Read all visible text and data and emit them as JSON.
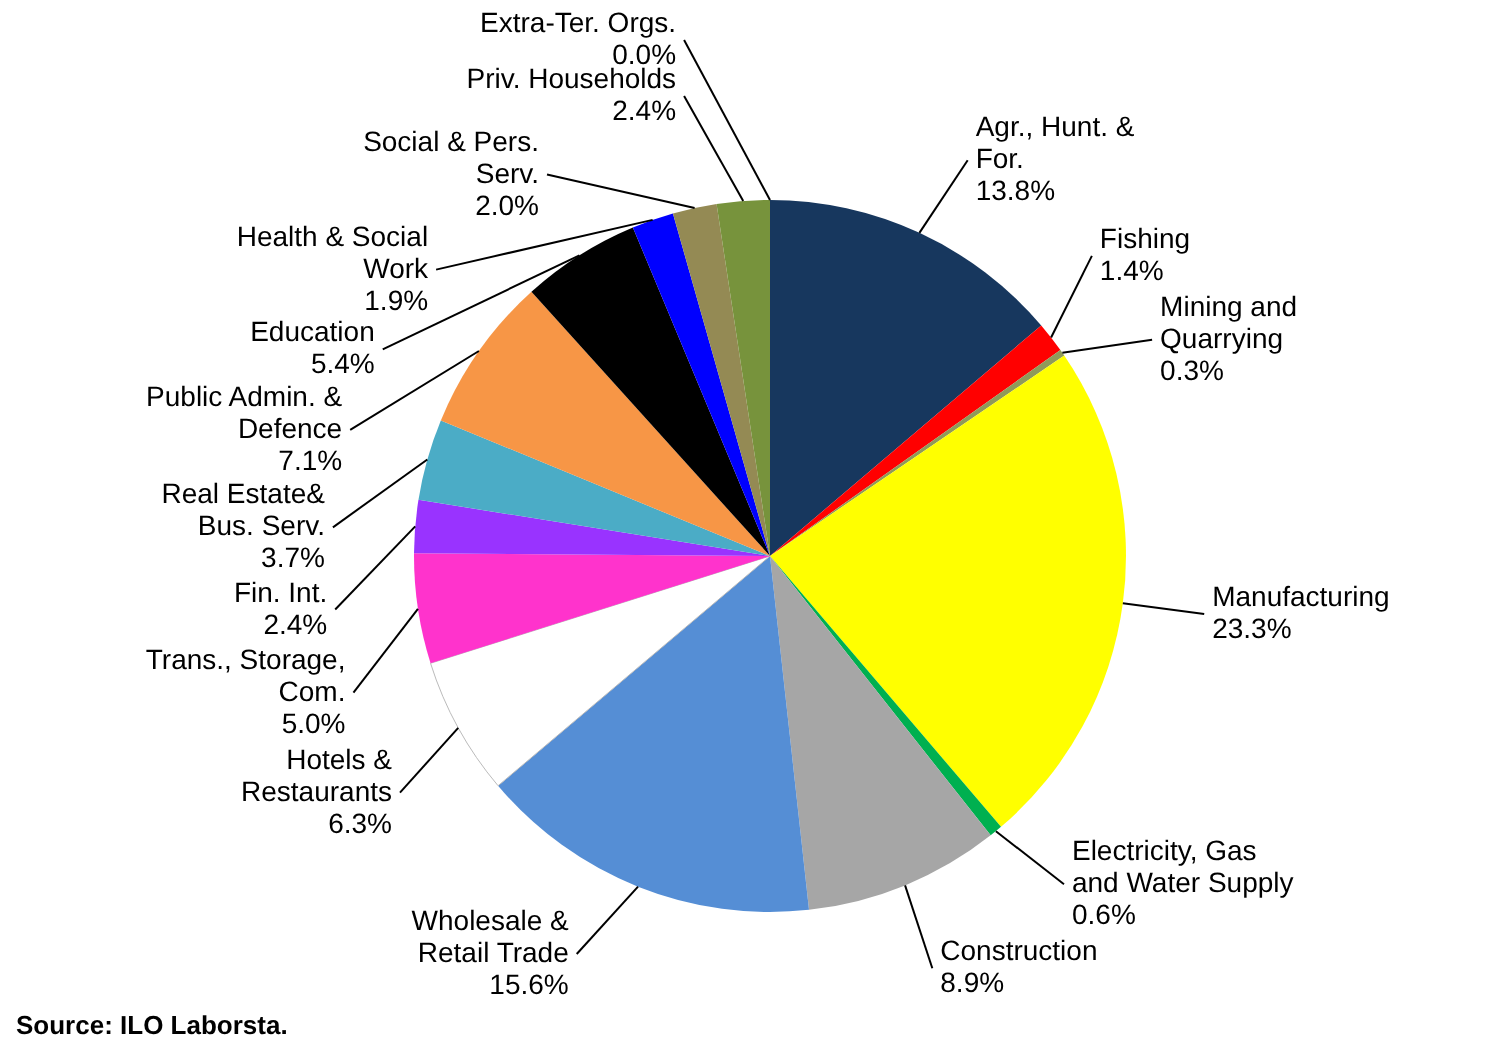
{
  "chart_data": {
    "type": "pie",
    "categories": [
      "Agr., Hunt. & For.",
      "Fishing",
      "Mining and Quarrying",
      "Manufacturing",
      "Electricity, Gas and Water Supply",
      "Construction",
      "Wholesale & Retail Trade",
      "Hotels & Restaurants",
      "Trans., Storage, Com.",
      "Fin. Int.",
      "Real Estate& Bus. Serv.",
      "Public Admin. & Defence",
      "Education",
      "Health & Social Work",
      "Social & Pers. Serv.",
      "Priv. Households",
      "Extra-Ter. Orgs."
    ],
    "values": [
      13.8,
      1.4,
      0.3,
      23.3,
      0.6,
      8.9,
      15.6,
      6.3,
      5.0,
      2.4,
      3.7,
      7.1,
      5.4,
      1.9,
      2.0,
      2.4,
      0.0
    ],
    "value_labels": [
      "13.8%",
      "1.4%",
      "0.3%",
      "23.3%",
      "0.6%",
      "8.9%",
      "15.6%",
      "6.3%",
      "5.0%",
      "2.4%",
      "3.7%",
      "7.1%",
      "5.4%",
      "1.9%",
      "2.0%",
      "2.4%",
      "0.0%"
    ],
    "colors": [
      "#17375e",
      "#ff0000",
      "#8f9a5a",
      "#ffff00",
      "#00b050",
      "#a6a6a6",
      "#558ed5",
      "#ffffff",
      "#ff33cc",
      "#9933ff",
      "#4bacc6",
      "#f79646",
      "#000000",
      "#0000ff",
      "#948a54",
      "#77933c",
      "#4f6228"
    ],
    "annotations": [
      "Source: ILO Laborsta."
    ]
  }
}
